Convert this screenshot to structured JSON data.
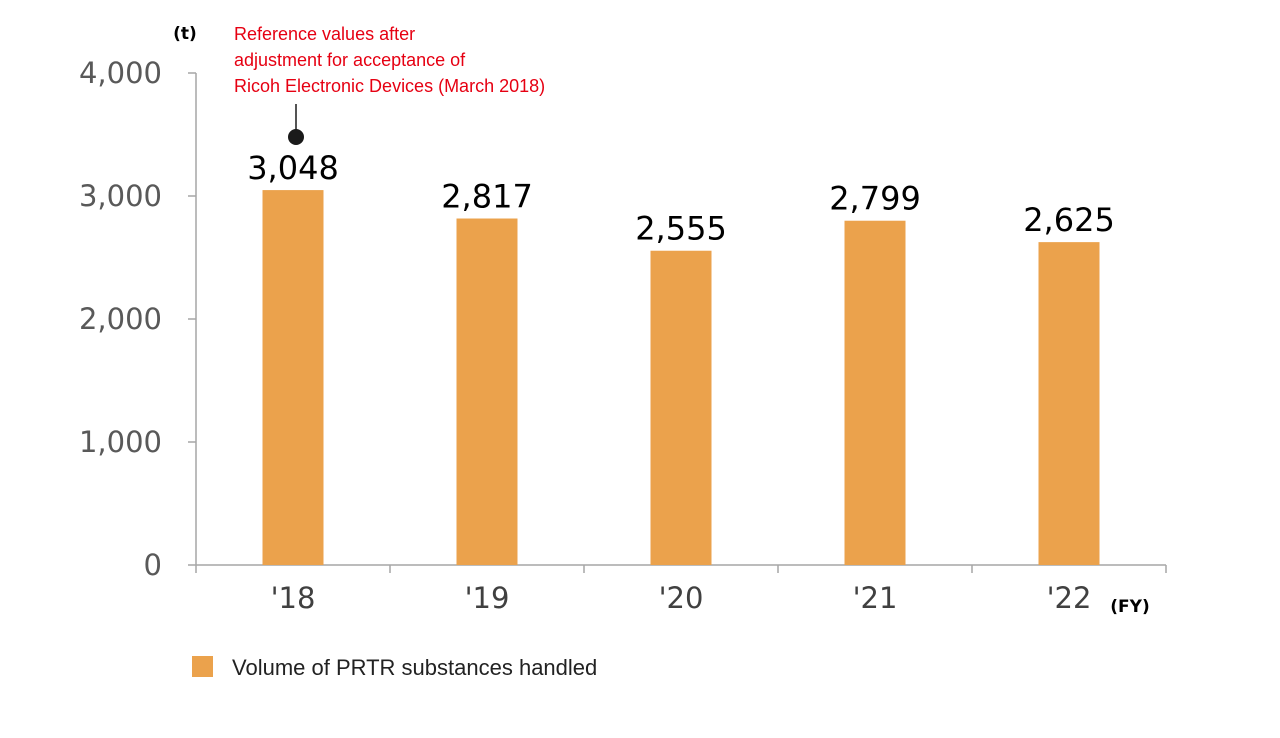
{
  "chart_data": {
    "type": "bar",
    "categories": [
      "'18",
      "'19",
      "'20",
      "'21",
      "'22"
    ],
    "values": [
      3048,
      2817,
      2555,
      2799,
      2625
    ],
    "value_labels": [
      "3,048",
      "2,817",
      "2,555",
      "2,799",
      "2,625"
    ],
    "ylim": [
      0,
      4000
    ],
    "yticks": [
      0,
      1000,
      2000,
      3000,
      4000
    ],
    "ytick_labels": [
      "0",
      "1,000",
      "2,000",
      "3,000",
      "4,000"
    ],
    "ylabel": "(t)",
    "xlabel": "(FY)",
    "grid": false,
    "series": [
      {
        "name": "Volume of PRTR substances handled",
        "values": [
          3048,
          2817,
          2555,
          2799,
          2625
        ]
      }
    ],
    "legend": {
      "position": "bottom-left",
      "label": "Volume of PRTR substances handled"
    },
    "annotation": {
      "target_category": "'18",
      "lines": [
        "Reference values after",
        "adjustment for acceptance of",
        "Ricoh Electronic Devices (March 2018)"
      ]
    }
  },
  "colors": {
    "bar": "#eba24c",
    "axis": "#a6a6a6",
    "annotation": "#e60012",
    "marker": "#1a1a1a"
  }
}
